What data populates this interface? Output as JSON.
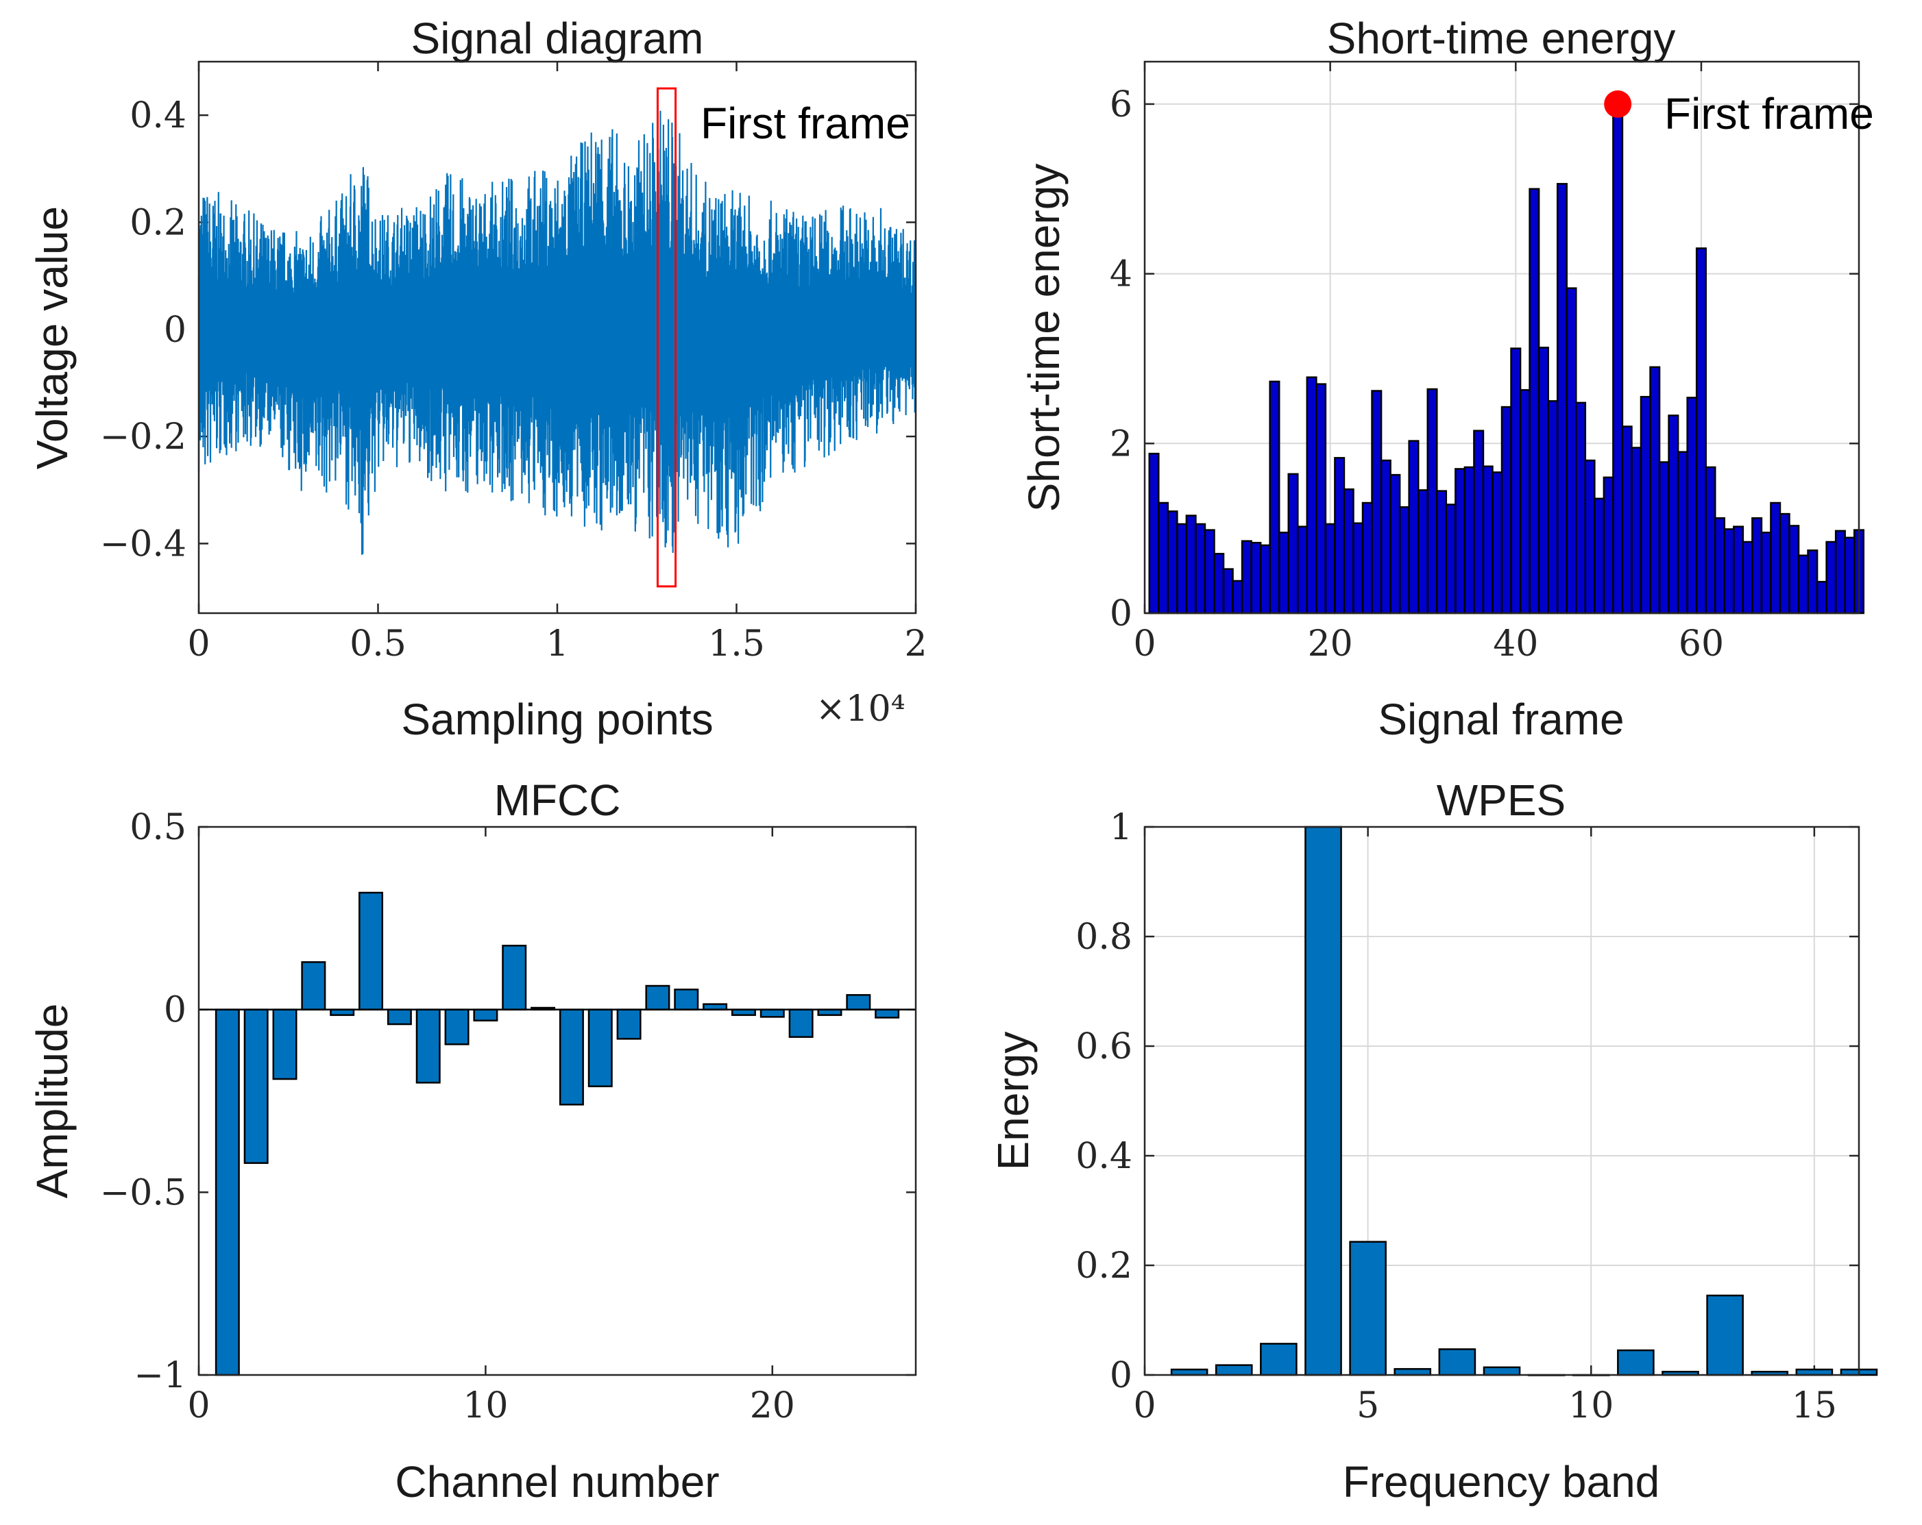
{
  "colors": {
    "matlab_blue": "#0072BD",
    "ste_bar": "#0000CC",
    "marker_red": "#FF0000",
    "axis": "#262626",
    "grid": "#D9D9D9"
  },
  "chart_data": [
    {
      "id": "signal",
      "type": "line",
      "title": "Signal diagram",
      "xlabel": "Sampling points",
      "ylabel": "Voltage value",
      "x_exponent": "×10⁴",
      "xlim": [
        0,
        2
      ],
      "ylim": [
        -0.53,
        0.5
      ],
      "xticks": [
        0,
        0.5,
        1,
        1.5,
        2
      ],
      "xticklabels": [
        "0",
        "0.5",
        "1",
        "1.5",
        "2"
      ],
      "yticks": [
        -0.4,
        -0.2,
        0,
        0.2,
        0.4
      ],
      "yticklabels": [
        "−0.4",
        "−0.2",
        "0",
        "0.2",
        "0.4"
      ],
      "grid": false,
      "envelope": [
        {
          "x": 0.0,
          "max": 0.28,
          "min": -0.3
        },
        {
          "x": 0.1,
          "max": 0.24,
          "min": -0.23
        },
        {
          "x": 0.2,
          "max": 0.2,
          "min": -0.22
        },
        {
          "x": 0.3,
          "max": 0.18,
          "min": -0.33
        },
        {
          "x": 0.4,
          "max": 0.26,
          "min": -0.3
        },
        {
          "x": 0.46,
          "max": 0.34,
          "min": -0.45
        },
        {
          "x": 0.5,
          "max": 0.22,
          "min": -0.28
        },
        {
          "x": 0.6,
          "max": 0.24,
          "min": -0.26
        },
        {
          "x": 0.7,
          "max": 0.3,
          "min": -0.32
        },
        {
          "x": 0.8,
          "max": 0.27,
          "min": -0.3
        },
        {
          "x": 0.9,
          "max": 0.3,
          "min": -0.34
        },
        {
          "x": 1.0,
          "max": 0.31,
          "min": -0.36
        },
        {
          "x": 1.08,
          "max": 0.36,
          "min": -0.38
        },
        {
          "x": 1.12,
          "max": 0.43,
          "min": -0.4
        },
        {
          "x": 1.2,
          "max": 0.33,
          "min": -0.38
        },
        {
          "x": 1.3,
          "max": 0.44,
          "min": -0.44
        },
        {
          "x": 1.4,
          "max": 0.28,
          "min": -0.36
        },
        {
          "x": 1.5,
          "max": 0.26,
          "min": -0.43
        },
        {
          "x": 1.6,
          "max": 0.24,
          "min": -0.3
        },
        {
          "x": 1.7,
          "max": 0.22,
          "min": -0.26
        },
        {
          "x": 1.8,
          "max": 0.24,
          "min": -0.22
        },
        {
          "x": 1.9,
          "max": 0.23,
          "min": -0.2
        },
        {
          "x": 2.0,
          "max": 0.18,
          "min": -0.16
        }
      ],
      "highlight_box": {
        "x": [
          1.28,
          1.33
        ],
        "y": [
          -0.48,
          0.45
        ]
      },
      "annotation": "First frame"
    },
    {
      "id": "ste",
      "type": "bar",
      "title": "Short-time energy",
      "xlabel": "Signal frame",
      "ylabel": "Short-time energy",
      "xlim": [
        0,
        77
      ],
      "ylim": [
        0,
        6.5
      ],
      "xticks": [
        0,
        20,
        40,
        60
      ],
      "xticklabels": [
        "0",
        "20",
        "40",
        "60"
      ],
      "yticks": [
        0,
        2,
        4,
        6
      ],
      "yticklabels": [
        "0",
        "2",
        "4",
        "6"
      ],
      "grid": true,
      "x": [
        1,
        2,
        3,
        4,
        5,
        6,
        7,
        8,
        9,
        10,
        11,
        12,
        13,
        14,
        15,
        16,
        17,
        18,
        19,
        20,
        21,
        22,
        23,
        24,
        25,
        26,
        27,
        28,
        29,
        30,
        31,
        32,
        33,
        34,
        35,
        36,
        37,
        38,
        39,
        40,
        41,
        42,
        43,
        44,
        45,
        46,
        47,
        48,
        49,
        50,
        51,
        52,
        53,
        54,
        55,
        56,
        57,
        58,
        59,
        60,
        61,
        62,
        63,
        64,
        65,
        66,
        67,
        68,
        69,
        70,
        71,
        72,
        73,
        74,
        75,
        76,
        77
      ],
      "values": [
        1.88,
        1.3,
        1.2,
        1.05,
        1.15,
        1.05,
        0.98,
        0.7,
        0.52,
        0.38,
        0.85,
        0.83,
        0.8,
        2.73,
        0.95,
        1.64,
        1.02,
        2.78,
        2.7,
        1.05,
        1.83,
        1.46,
        1.06,
        1.3,
        2.62,
        1.8,
        1.63,
        1.25,
        2.03,
        1.45,
        2.64,
        1.44,
        1.28,
        1.7,
        1.72,
        2.15,
        1.73,
        1.66,
        2.43,
        3.12,
        2.63,
        5.0,
        3.13,
        2.5,
        5.06,
        3.83,
        2.48,
        1.8,
        1.35,
        1.6,
        6.0,
        2.2,
        1.95,
        2.55,
        2.9,
        1.78,
        2.33,
        1.9,
        2.54,
        4.3,
        1.72,
        1.12,
        0.99,
        1.02,
        0.84,
        1.12,
        0.95,
        1.3,
        1.17,
        1.03,
        0.68,
        0.74,
        0.37,
        0.84,
        0.97,
        0.89,
        0.98
      ],
      "highlight": {
        "x": 51,
        "y": 6.0
      },
      "annotation": "First frame"
    },
    {
      "id": "mfcc",
      "type": "bar",
      "title": "MFCC",
      "xlabel": "Channel number",
      "ylabel": "Amplitude",
      "xlim": [
        0,
        25
      ],
      "ylim": [
        -1,
        0.5
      ],
      "xticks": [
        0,
        10,
        20
      ],
      "xticklabels": [
        "0",
        "10",
        "20"
      ],
      "yticks": [
        -1,
        -0.5,
        0,
        0.5
      ],
      "yticklabels": [
        "−1",
        "−0.5",
        "0",
        "0.5"
      ],
      "grid": false,
      "x": [
        1,
        2,
        3,
        4,
        5,
        6,
        7,
        8,
        9,
        10,
        11,
        12,
        13,
        14,
        15,
        16,
        17,
        18,
        19,
        20,
        21,
        22,
        23,
        24
      ],
      "values": [
        -1.0,
        -0.42,
        -0.19,
        0.13,
        -0.015,
        0.32,
        -0.04,
        -0.2,
        -0.095,
        -0.03,
        0.175,
        0.005,
        -0.26,
        -0.21,
        -0.08,
        0.065,
        0.055,
        0.015,
        -0.015,
        -0.02,
        -0.075,
        -0.015,
        0.04,
        -0.022
      ]
    },
    {
      "id": "wpes",
      "type": "bar",
      "title": "WPES",
      "xlabel": "Frequency band",
      "ylabel": "Energy",
      "xlim": [
        0,
        16
      ],
      "ylim": [
        0,
        1
      ],
      "xticks": [
        0,
        5,
        10,
        15
      ],
      "xticklabels": [
        "0",
        "5",
        "10",
        "15"
      ],
      "yticks": [
        0,
        0.2,
        0.4,
        0.6,
        0.8,
        1
      ],
      "yticklabels": [
        "0",
        "0.2",
        "0.4",
        "0.6",
        "0.8",
        "1"
      ],
      "grid": true,
      "x": [
        1,
        2,
        3,
        4,
        5,
        6,
        7,
        8,
        9,
        10,
        11,
        12,
        13,
        14,
        15,
        16
      ],
      "values": [
        0.01,
        0.018,
        0.057,
        1.0,
        0.243,
        0.011,
        0.047,
        0.014,
        0,
        0,
        0.045,
        0.006,
        0.145,
        0.006,
        0.01,
        0.01
      ]
    }
  ]
}
